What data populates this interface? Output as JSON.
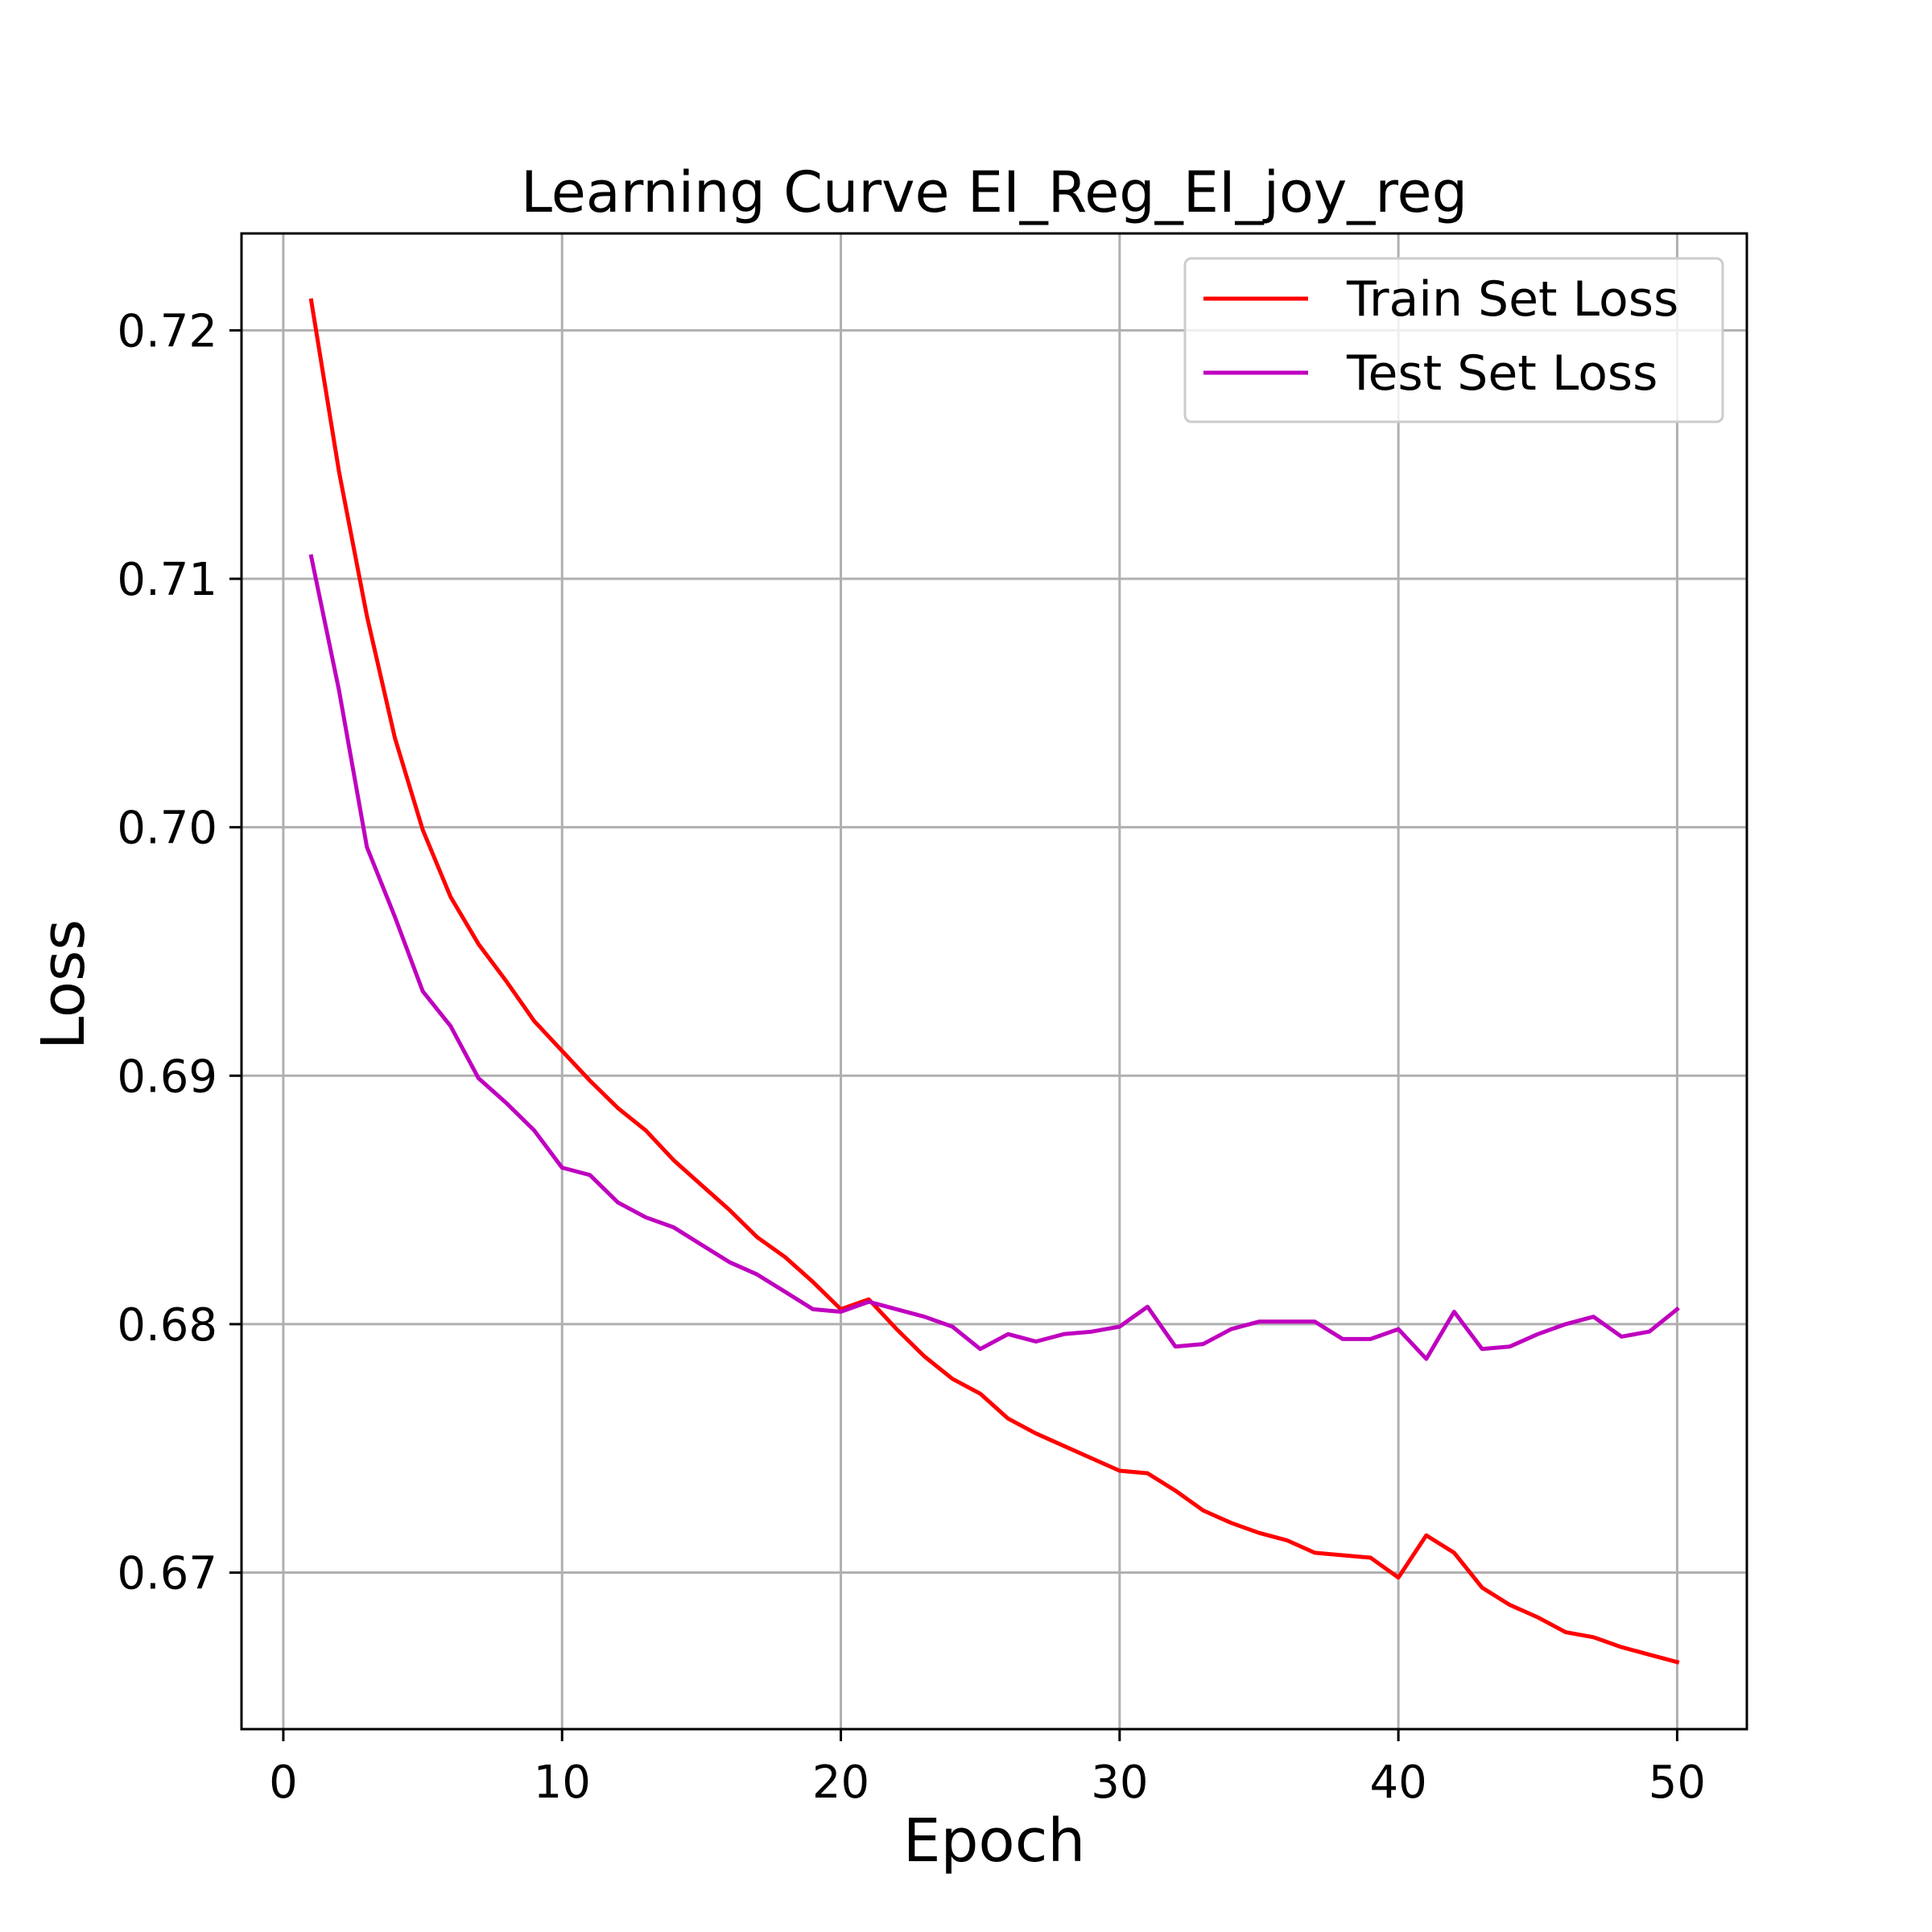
{
  "chart_data": {
    "type": "line",
    "title": "Learning Curve EI_Reg_EI_joy_reg",
    "xlabel": "Epoch",
    "ylabel": "Loss",
    "xlim": [
      -1.5,
      52.5
    ],
    "ylim": [
      0.6637,
      0.7239
    ],
    "xticks": [
      0,
      10,
      20,
      30,
      40,
      50
    ],
    "yticks": [
      0.67,
      0.68,
      0.69,
      0.7,
      0.71,
      0.72
    ],
    "ytick_labels": [
      "0.67",
      "0.68",
      "0.69",
      "0.70",
      "0.71",
      "0.72"
    ],
    "grid": true,
    "legend_position": "top-right",
    "x": [
      1,
      2,
      3,
      4,
      5,
      6,
      7,
      8,
      9,
      10,
      11,
      12,
      13,
      14,
      15,
      16,
      17,
      18,
      19,
      20,
      21,
      22,
      23,
      24,
      25,
      26,
      27,
      28,
      29,
      30,
      31,
      32,
      33,
      34,
      35,
      36,
      37,
      38,
      39,
      40,
      41,
      42,
      43,
      44,
      45,
      46,
      47,
      48,
      49,
      50
    ],
    "series": [
      {
        "name": "Train Set Loss",
        "color": "#ff0000",
        "values": [
          0.7212,
          0.7143,
          0.7085,
          0.7036,
          0.6999,
          0.6972,
          0.6953,
          0.6938,
          0.6922,
          0.691,
          0.6898,
          0.6887,
          0.6878,
          0.6866,
          0.6856,
          0.6846,
          0.6835,
          0.6827,
          0.6817,
          0.6806,
          0.681,
          0.6798,
          0.6787,
          0.6778,
          0.6772,
          0.6762,
          0.6756,
          0.6751,
          0.6746,
          0.6741,
          0.674,
          0.6733,
          0.6725,
          0.672,
          0.6716,
          0.6713,
          0.6708,
          0.6707,
          0.6706,
          0.6698,
          0.6715,
          0.6708,
          0.6694,
          0.6687,
          0.6682,
          0.6676,
          0.6674,
          0.667,
          0.6667,
          0.6664
        ]
      },
      {
        "name": "Test Set Loss",
        "color": "#bf00bf",
        "values": [
          0.7109,
          0.7055,
          0.6992,
          0.6964,
          0.6934,
          0.692,
          0.6899,
          0.6889,
          0.6878,
          0.6863,
          0.686,
          0.6849,
          0.6843,
          0.6839,
          0.6832,
          0.6825,
          0.682,
          0.6813,
          0.6806,
          0.6805,
          0.6809,
          0.6806,
          0.6803,
          0.6799,
          0.679,
          0.6796,
          0.6793,
          0.6796,
          0.6797,
          0.6799,
          0.6807,
          0.6791,
          0.6792,
          0.6798,
          0.6801,
          0.6801,
          0.6801,
          0.6794,
          0.6794,
          0.6798,
          0.6786,
          0.6805,
          0.679,
          0.6791,
          0.6796,
          0.68,
          0.6803,
          0.6795,
          0.6797,
          0.6806
        ]
      }
    ]
  }
}
